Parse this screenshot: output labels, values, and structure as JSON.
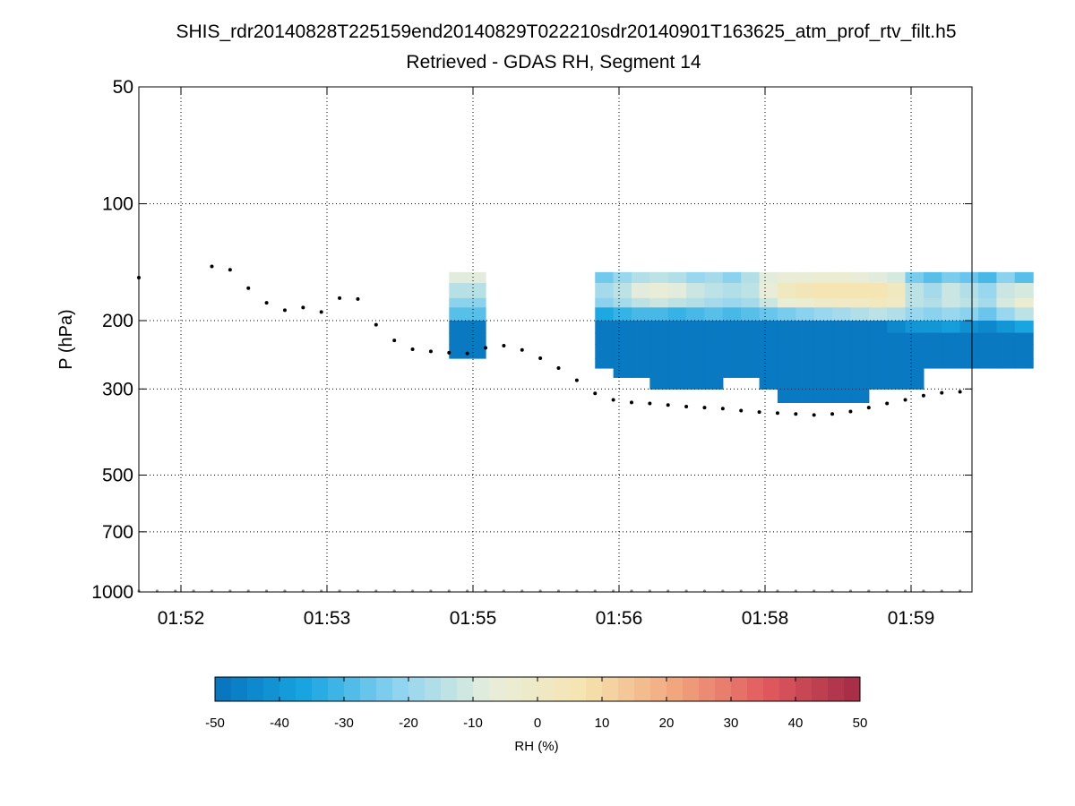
{
  "chart_data": {
    "type": "heatmap",
    "title": "SHIS_rdr20140828T225159end20140829T022210sdr20140901T163625_atm_prof_rtv_filt.h5",
    "subtitle": "Retrieved - GDAS RH, Segment 14",
    "xlabel": "",
    "ylabel": "P (hPa)",
    "y_scale": "log",
    "y_reversed": true,
    "ylim": [
      50,
      1000
    ],
    "y_ticks": [
      50,
      100,
      200,
      300,
      500,
      700,
      1000
    ],
    "x_tick_labels": [
      "01:52",
      "01:53",
      "01:55",
      "01:56",
      "01:58",
      "01:59"
    ],
    "grid": true,
    "colorbar": {
      "label": "RH (%)",
      "range": [
        -50,
        50
      ],
      "ticks": [
        -50,
        -40,
        -30,
        -20,
        -10,
        0,
        10,
        20,
        30,
        40,
        50
      ],
      "colors": [
        "#0672bd",
        "#18a6e1",
        "#8fd4ef",
        "#e8eedb",
        "#f5e4b0",
        "#f1a57d",
        "#e0595e",
        "#a32b45"
      ]
    },
    "pressure_levels": [
      150,
      160,
      175,
      185,
      200,
      215,
      230,
      250,
      265,
      280,
      300,
      325
    ],
    "columns": [
      {
        "col": 17,
        "rh": [
          -8,
          -15,
          -22,
          -28,
          -48,
          -48,
          -48,
          null,
          null,
          null,
          null
        ]
      },
      {
        "col": 18,
        "rh": [
          -8,
          -15,
          -22,
          -28,
          -48,
          -48,
          -48,
          null,
          null,
          null,
          null
        ]
      },
      {
        "col": 25,
        "rh": [
          -25,
          -18,
          -22,
          -35,
          -48,
          -48,
          -48,
          -48,
          null,
          null,
          null
        ]
      },
      {
        "col": 26,
        "rh": [
          -20,
          -14,
          -18,
          -32,
          -48,
          -48,
          -48,
          -48,
          -48,
          null,
          null
        ]
      },
      {
        "col": 27,
        "rh": [
          -16,
          -8,
          -14,
          -30,
          -48,
          -48,
          -48,
          -48,
          -48,
          null,
          null
        ]
      },
      {
        "col": 28,
        "rh": [
          -14,
          -6,
          -12,
          -30,
          -48,
          -48,
          -48,
          -48,
          -48,
          -48,
          null
        ]
      },
      {
        "col": 29,
        "rh": [
          -16,
          -8,
          -14,
          -32,
          -48,
          -48,
          -48,
          -48,
          -48,
          -48,
          null
        ]
      },
      {
        "col": 30,
        "rh": [
          -20,
          -12,
          -16,
          -30,
          -48,
          -48,
          -48,
          -48,
          -48,
          -48,
          null
        ]
      },
      {
        "col": 31,
        "rh": [
          -18,
          -14,
          -18,
          -28,
          -48,
          -48,
          -48,
          -48,
          -48,
          -48,
          null
        ]
      },
      {
        "col": 32,
        "rh": [
          -22,
          -16,
          -20,
          -30,
          -48,
          -48,
          -48,
          -48,
          -48,
          null,
          null
        ]
      },
      {
        "col": 33,
        "rh": [
          -16,
          -14,
          -18,
          -28,
          -48,
          -48,
          -48,
          -48,
          -48,
          null,
          null
        ]
      },
      {
        "col": 34,
        "rh": [
          -8,
          -6,
          -12,
          -26,
          -48,
          -48,
          -48,
          -48,
          -48,
          -48,
          null
        ]
      },
      {
        "col": 35,
        "rh": [
          -6,
          2,
          -6,
          -24,
          -48,
          -48,
          -48,
          -48,
          -48,
          -48,
          -48
        ]
      },
      {
        "col": 36,
        "rh": [
          -6,
          4,
          -4,
          -22,
          -48,
          -48,
          -48,
          -48,
          -48,
          -48,
          -48
        ]
      },
      {
        "col": 37,
        "rh": [
          -4,
          6,
          -2,
          -20,
          -48,
          -48,
          -48,
          -48,
          -48,
          -48,
          -48
        ]
      },
      {
        "col": 38,
        "rh": [
          -4,
          6,
          0,
          -18,
          -48,
          -48,
          -48,
          -48,
          -48,
          -48,
          -48
        ]
      },
      {
        "col": 39,
        "rh": [
          -6,
          6,
          0,
          -16,
          -48,
          -48,
          -48,
          -48,
          -48,
          -48,
          -48
        ]
      },
      {
        "col": 40,
        "rh": [
          -8,
          6,
          2,
          -14,
          -48,
          -48,
          -48,
          -48,
          -48,
          -48,
          null
        ]
      },
      {
        "col": 41,
        "rh": [
          -10,
          2,
          0,
          -16,
          -44,
          -48,
          -48,
          -48,
          -48,
          -48,
          null
        ]
      },
      {
        "col": 42,
        "rh": [
          -24,
          -14,
          -14,
          -20,
          -40,
          -48,
          -48,
          -48,
          -48,
          -48,
          null
        ]
      },
      {
        "col": 43,
        "rh": [
          -28,
          -18,
          -16,
          -22,
          -40,
          -48,
          -48,
          -48,
          null,
          null,
          null
        ]
      },
      {
        "col": 44,
        "rh": [
          -24,
          -12,
          -12,
          -20,
          -38,
          -48,
          -48,
          -48,
          null,
          null,
          null
        ]
      },
      {
        "col": 45,
        "rh": [
          -26,
          -16,
          -14,
          -22,
          -42,
          -48,
          -48,
          -48,
          null,
          null,
          null
        ]
      },
      {
        "col": 46,
        "rh": [
          -30,
          -20,
          -18,
          -26,
          -44,
          -48,
          -48,
          -48,
          null,
          null,
          null
        ]
      },
      {
        "col": 47,
        "rh": [
          -22,
          -12,
          -10,
          -20,
          -40,
          -48,
          -48,
          -48,
          null,
          null,
          null
        ]
      },
      {
        "col": 48,
        "rh": [
          -28,
          -10,
          -4,
          -14,
          -36,
          -48,
          -48,
          -48,
          null,
          null,
          null
        ]
      }
    ],
    "surface_pressure": 1000,
    "series": [
      {
        "values": [
          [
            0,
            155
          ],
          [
            4,
            145
          ],
          [
            5,
            148
          ],
          [
            6,
            165
          ],
          [
            7,
            180
          ],
          [
            8,
            188
          ],
          [
            9,
            185
          ],
          [
            10,
            190
          ],
          [
            11,
            175
          ],
          [
            12,
            176
          ],
          [
            13,
            205
          ],
          [
            14,
            225
          ],
          [
            15,
            237
          ],
          [
            16,
            240
          ],
          [
            17,
            242
          ],
          [
            18,
            243
          ],
          [
            19,
            235
          ],
          [
            20,
            232
          ],
          [
            21,
            238
          ],
          [
            22,
            250
          ],
          [
            23,
            265
          ],
          [
            24,
            285
          ],
          [
            25,
            308
          ],
          [
            26,
            320
          ],
          [
            27,
            325
          ],
          [
            28,
            327
          ],
          [
            29,
            330
          ],
          [
            30,
            333
          ],
          [
            31,
            335
          ],
          [
            32,
            337
          ],
          [
            33,
            341
          ],
          [
            34,
            344
          ],
          [
            35,
            346
          ],
          [
            36,
            348
          ],
          [
            37,
            350
          ],
          [
            38,
            348
          ],
          [
            39,
            343
          ],
          [
            40,
            335
          ],
          [
            41,
            327
          ],
          [
            42,
            320
          ],
          [
            43,
            312
          ],
          [
            44,
            307
          ],
          [
            45,
            305
          ],
          [
            46,
            306
          ],
          [
            47,
            310
          ],
          [
            48,
            315
          ],
          [
            49,
            320
          ],
          [
            50,
            322
          ],
          [
            51,
            325
          ],
          [
            52,
            325
          ]
        ]
      }
    ]
  }
}
